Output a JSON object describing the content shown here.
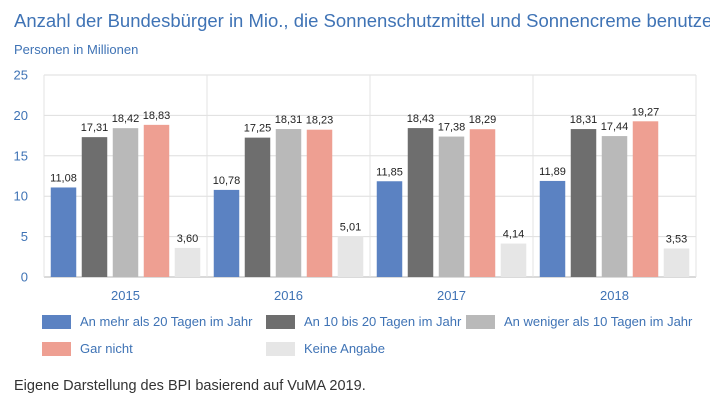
{
  "title": "Anzahl der Bundesbürger in Mio., die Sonnenschutzmittel und Sonnencreme benutzen",
  "footer": "Eigene Darstellung des BPI basierend auf VuMA 2019.",
  "chart_data": {
    "type": "bar",
    "title": "Anzahl der Bundesbürger in Mio., die Sonnenschutzmittel und Sonnencreme benutzen",
    "xlabel": "",
    "ylabel": "Personen in Millionen",
    "ylim": [
      0,
      25
    ],
    "yticks": [
      "0",
      "5",
      "10",
      "15",
      "20",
      "25"
    ],
    "grid": true,
    "legend_position": "bottom",
    "categories": [
      "2015",
      "2016",
      "2017",
      "2018"
    ],
    "series": [
      {
        "name": "An mehr als 20 Tagen im Jahr",
        "color": "#5b82c2",
        "values": [
          11.08,
          10.78,
          11.85,
          11.89
        ],
        "labels": [
          "11,08",
          "10,78",
          "11,85",
          "11,89"
        ]
      },
      {
        "name": "An 10 bis 20 Tagen im Jahr",
        "color": "#6e6e6e",
        "values": [
          17.31,
          17.25,
          18.43,
          18.31
        ],
        "labels": [
          "17,31",
          "17,25",
          "18,43",
          "18,31"
        ]
      },
      {
        "name": "An weniger als 10 Tagen im Jahr",
        "color": "#b9b9b9",
        "values": [
          18.42,
          18.31,
          17.38,
          17.44
        ],
        "labels": [
          "18,42",
          "18,31",
          "17,38",
          "17,44"
        ]
      },
      {
        "name": "Gar nicht",
        "color": "#ee9f92",
        "values": [
          18.83,
          18.23,
          18.29,
          19.27
        ],
        "labels": [
          "18,83",
          "18,23",
          "18,29",
          "19,27"
        ]
      },
      {
        "name": "Keine Angabe",
        "color": "#e6e6e6",
        "values": [
          3.6,
          5.01,
          4.14,
          3.53
        ],
        "labels": [
          "3,60",
          "5,01",
          "4,14",
          "3,53"
        ]
      }
    ]
  }
}
